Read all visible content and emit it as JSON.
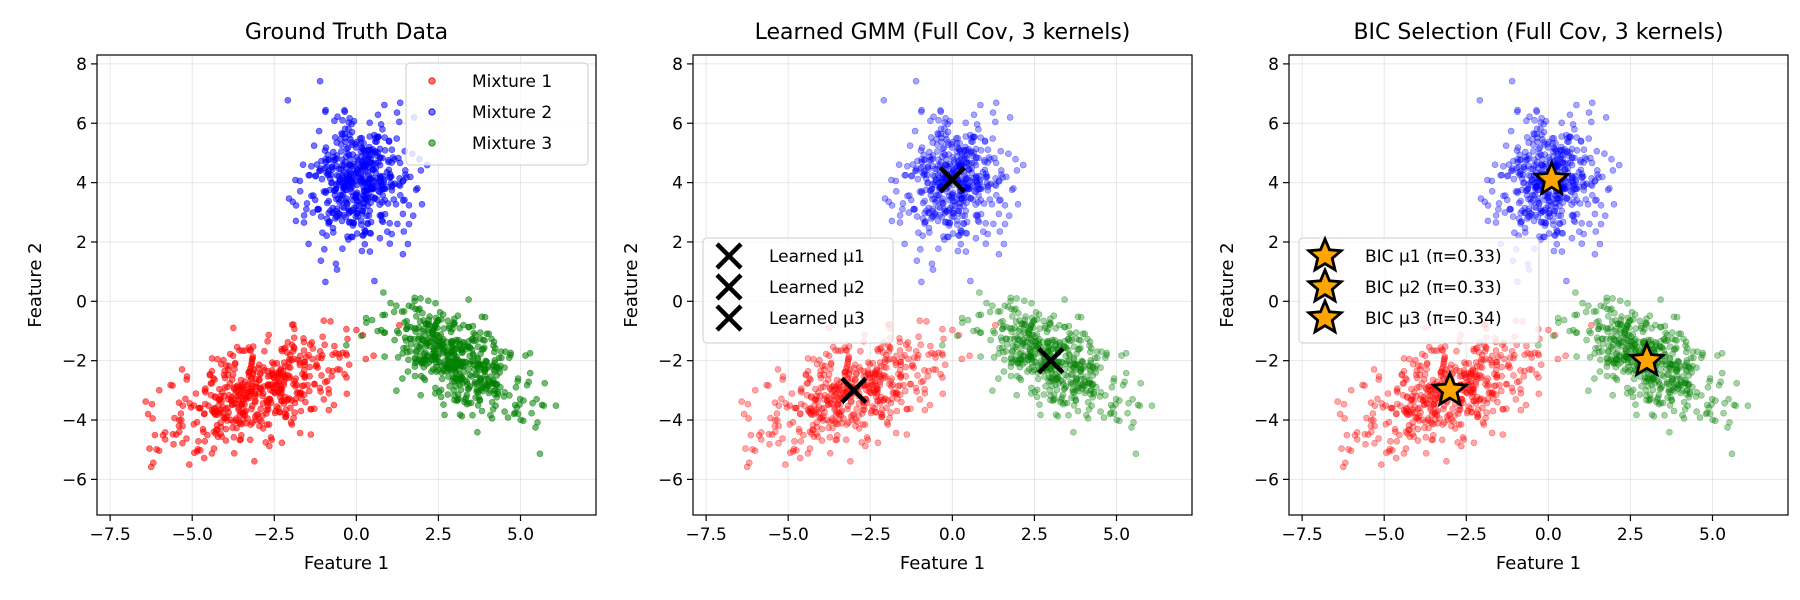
{
  "chart_data": [
    {
      "type": "scatter",
      "title": "Ground Truth Data",
      "xlabel": "Feature 1",
      "ylabel": "Feature 2",
      "xlim": [
        -7.9,
        7.3
      ],
      "ylim": [
        -7.2,
        8.3
      ],
      "xticks": [
        "−7.5",
        "−5.0",
        "−2.5",
        "0.0",
        "2.5",
        "5.0"
      ],
      "xtick_values": [
        -7.5,
        -5.0,
        -2.5,
        0.0,
        2.5,
        5.0
      ],
      "yticks": [
        "−6",
        "−4",
        "−2",
        "0",
        "2",
        "4",
        "6",
        "8"
      ],
      "ytick_values": [
        -6,
        -4,
        -2,
        0,
        2,
        4,
        6,
        8
      ],
      "grid": true,
      "legend_position": "top-right",
      "point_alpha": 0.55,
      "series": [
        {
          "name": "Mixture 1",
          "color": "#ff0000",
          "center": [
            -3.0,
            -3.0
          ],
          "spread": [
            1.35,
            0.95
          ],
          "corr": 0.55,
          "n_points": 500
        },
        {
          "name": "Mixture 2",
          "color": "#0000ff",
          "center": [
            0.0,
            4.0
          ],
          "spread": [
            0.75,
            1.05
          ],
          "corr": 0.0,
          "n_points": 500
        },
        {
          "name": "Mixture 3",
          "color": "#008000",
          "center": [
            3.0,
            -2.0
          ],
          "spread": [
            1.1,
            0.95
          ],
          "corr": -0.6,
          "n_points": 500
        }
      ],
      "markers": []
    },
    {
      "type": "scatter",
      "title": "Learned GMM (Full Cov, 3 kernels)",
      "xlabel": "Feature 1",
      "ylabel": "Feature 2",
      "xlim": [
        -7.9,
        7.3
      ],
      "ylim": [
        -7.2,
        8.3
      ],
      "xticks": [
        "−7.5",
        "−5.0",
        "−2.5",
        "0.0",
        "2.5",
        "5.0"
      ],
      "xtick_values": [
        -7.5,
        -5.0,
        -2.5,
        0.0,
        2.5,
        5.0
      ],
      "yticks": [
        "−6",
        "−4",
        "−2",
        "0",
        "2",
        "4",
        "6",
        "8"
      ],
      "ytick_values": [
        -6,
        -4,
        -2,
        0,
        2,
        4,
        6,
        8
      ],
      "grid": true,
      "legend_position": "center-left",
      "point_alpha": 0.35,
      "series": [
        {
          "color": "#ff0000",
          "center": [
            -3.0,
            -3.0
          ],
          "spread": [
            1.35,
            0.95
          ],
          "corr": 0.55,
          "n_points": 500
        },
        {
          "color": "#0000ff",
          "center": [
            0.0,
            4.0
          ],
          "spread": [
            0.75,
            1.05
          ],
          "corr": 0.0,
          "n_points": 500
        },
        {
          "color": "#008000",
          "center": [
            3.0,
            -2.0
          ],
          "spread": [
            1.1,
            0.95
          ],
          "corr": -0.6,
          "n_points": 500
        }
      ],
      "markers": [
        {
          "name": "Learned μ1",
          "x": 0.0,
          "y": 4.1,
          "shape": "x",
          "color": "#000000"
        },
        {
          "name": "Learned μ2",
          "x": -3.0,
          "y": -3.0,
          "shape": "x",
          "color": "#000000"
        },
        {
          "name": "Learned μ3",
          "x": 3.0,
          "y": -2.0,
          "shape": "x",
          "color": "#000000"
        }
      ]
    },
    {
      "type": "scatter",
      "title": "BIC Selection (Full Cov, 3 kernels)",
      "xlabel": "Feature 1",
      "ylabel": "Feature 2",
      "xlim": [
        -7.9,
        7.3
      ],
      "ylim": [
        -7.2,
        8.3
      ],
      "xticks": [
        "−7.5",
        "−5.0",
        "−2.5",
        "0.0",
        "2.5",
        "5.0"
      ],
      "xtick_values": [
        -7.5,
        -5.0,
        -2.5,
        0.0,
        2.5,
        5.0
      ],
      "yticks": [
        "−6",
        "−4",
        "−2",
        "0",
        "2",
        "4",
        "6",
        "8"
      ],
      "ytick_values": [
        -6,
        -4,
        -2,
        0,
        2,
        4,
        6,
        8
      ],
      "grid": true,
      "legend_position": "center-left",
      "point_alpha": 0.35,
      "series": [
        {
          "color": "#ff0000",
          "center": [
            -3.0,
            -3.0
          ],
          "spread": [
            1.35,
            0.95
          ],
          "corr": 0.55,
          "n_points": 500
        },
        {
          "color": "#0000ff",
          "center": [
            0.0,
            4.0
          ],
          "spread": [
            0.75,
            1.05
          ],
          "corr": 0.0,
          "n_points": 500
        },
        {
          "color": "#008000",
          "center": [
            3.0,
            -2.0
          ],
          "spread": [
            1.1,
            0.95
          ],
          "corr": -0.6,
          "n_points": 500
        }
      ],
      "markers": [
        {
          "name": "BIC μ1 (π=0.33)",
          "x": 0.1,
          "y": 4.1,
          "shape": "star",
          "color": "#ffa500"
        },
        {
          "name": "BIC μ2 (π=0.33)",
          "x": -3.0,
          "y": -3.0,
          "shape": "star",
          "color": "#ffa500"
        },
        {
          "name": "BIC μ3 (π=0.34)",
          "x": 3.0,
          "y": -2.0,
          "shape": "star",
          "color": "#ffa500"
        }
      ]
    }
  ]
}
